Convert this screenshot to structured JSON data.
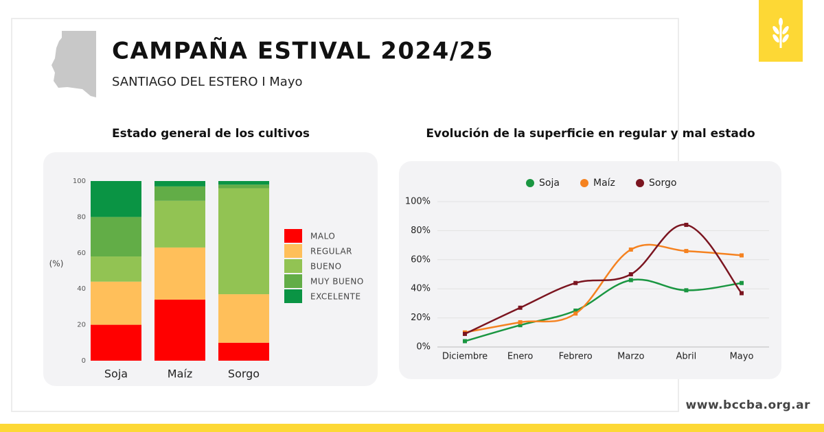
{
  "header": {
    "title": "CAMPAÑA ESTIVAL 2024/25",
    "subtitle": "SANTIAGO DEL ESTERO I Mayo"
  },
  "footer": {
    "url": "www.bccba.org.ar"
  },
  "chart_data": [
    {
      "type": "bar",
      "stacked": true,
      "title": "Estado general de los cultivos",
      "y_label": "(%)",
      "categories": [
        "Soja",
        "Maíz",
        "Sorgo"
      ],
      "series": [
        {
          "name": "MALO",
          "color": "#ff0000",
          "values": [
            20,
            34,
            10
          ]
        },
        {
          "name": "REGULAR",
          "color": "#ffbf5a",
          "values": [
            24,
            29,
            27
          ]
        },
        {
          "name": "BUENO",
          "color": "#92c353",
          "values": [
            14,
            26,
            59
          ]
        },
        {
          "name": "MUY BUENO",
          "color": "#62ad47",
          "values": [
            22,
            8,
            2
          ]
        },
        {
          "name": "EXCELENTE",
          "color": "#0a9444",
          "values": [
            20,
            3,
            2
          ]
        }
      ],
      "ylim": [
        0,
        100
      ],
      "yticks": [
        0,
        20,
        40,
        60,
        80,
        100
      ],
      "grid": false,
      "legend": "right"
    },
    {
      "type": "line",
      "title": "Evolución de la superficie en regular y mal estado",
      "categories": [
        "Diciembre",
        "Enero",
        "Febrero",
        "Marzo",
        "Abril",
        "Mayo"
      ],
      "series": [
        {
          "name": "Soja",
          "color": "#1a9641",
          "values": [
            4,
            15,
            25,
            46,
            39,
            44
          ]
        },
        {
          "name": "Maíz",
          "color": "#f58220",
          "values": [
            10,
            17,
            23,
            67,
            66,
            63
          ]
        },
        {
          "name": "Sorgo",
          "color": "#7b1520",
          "values": [
            9,
            27,
            44,
            50,
            84,
            37
          ]
        }
      ],
      "ylim": [
        0,
        100
      ],
      "yticks": [
        {
          "value": 0,
          "label": "0%"
        },
        {
          "value": 20,
          "label": "20%"
        },
        {
          "value": 40,
          "label": "40%"
        },
        {
          "value": 60,
          "label": "60%"
        },
        {
          "value": 80,
          "label": "80%"
        },
        {
          "value": 100,
          "label": "100%"
        }
      ],
      "grid": true,
      "legend": "top"
    }
  ]
}
